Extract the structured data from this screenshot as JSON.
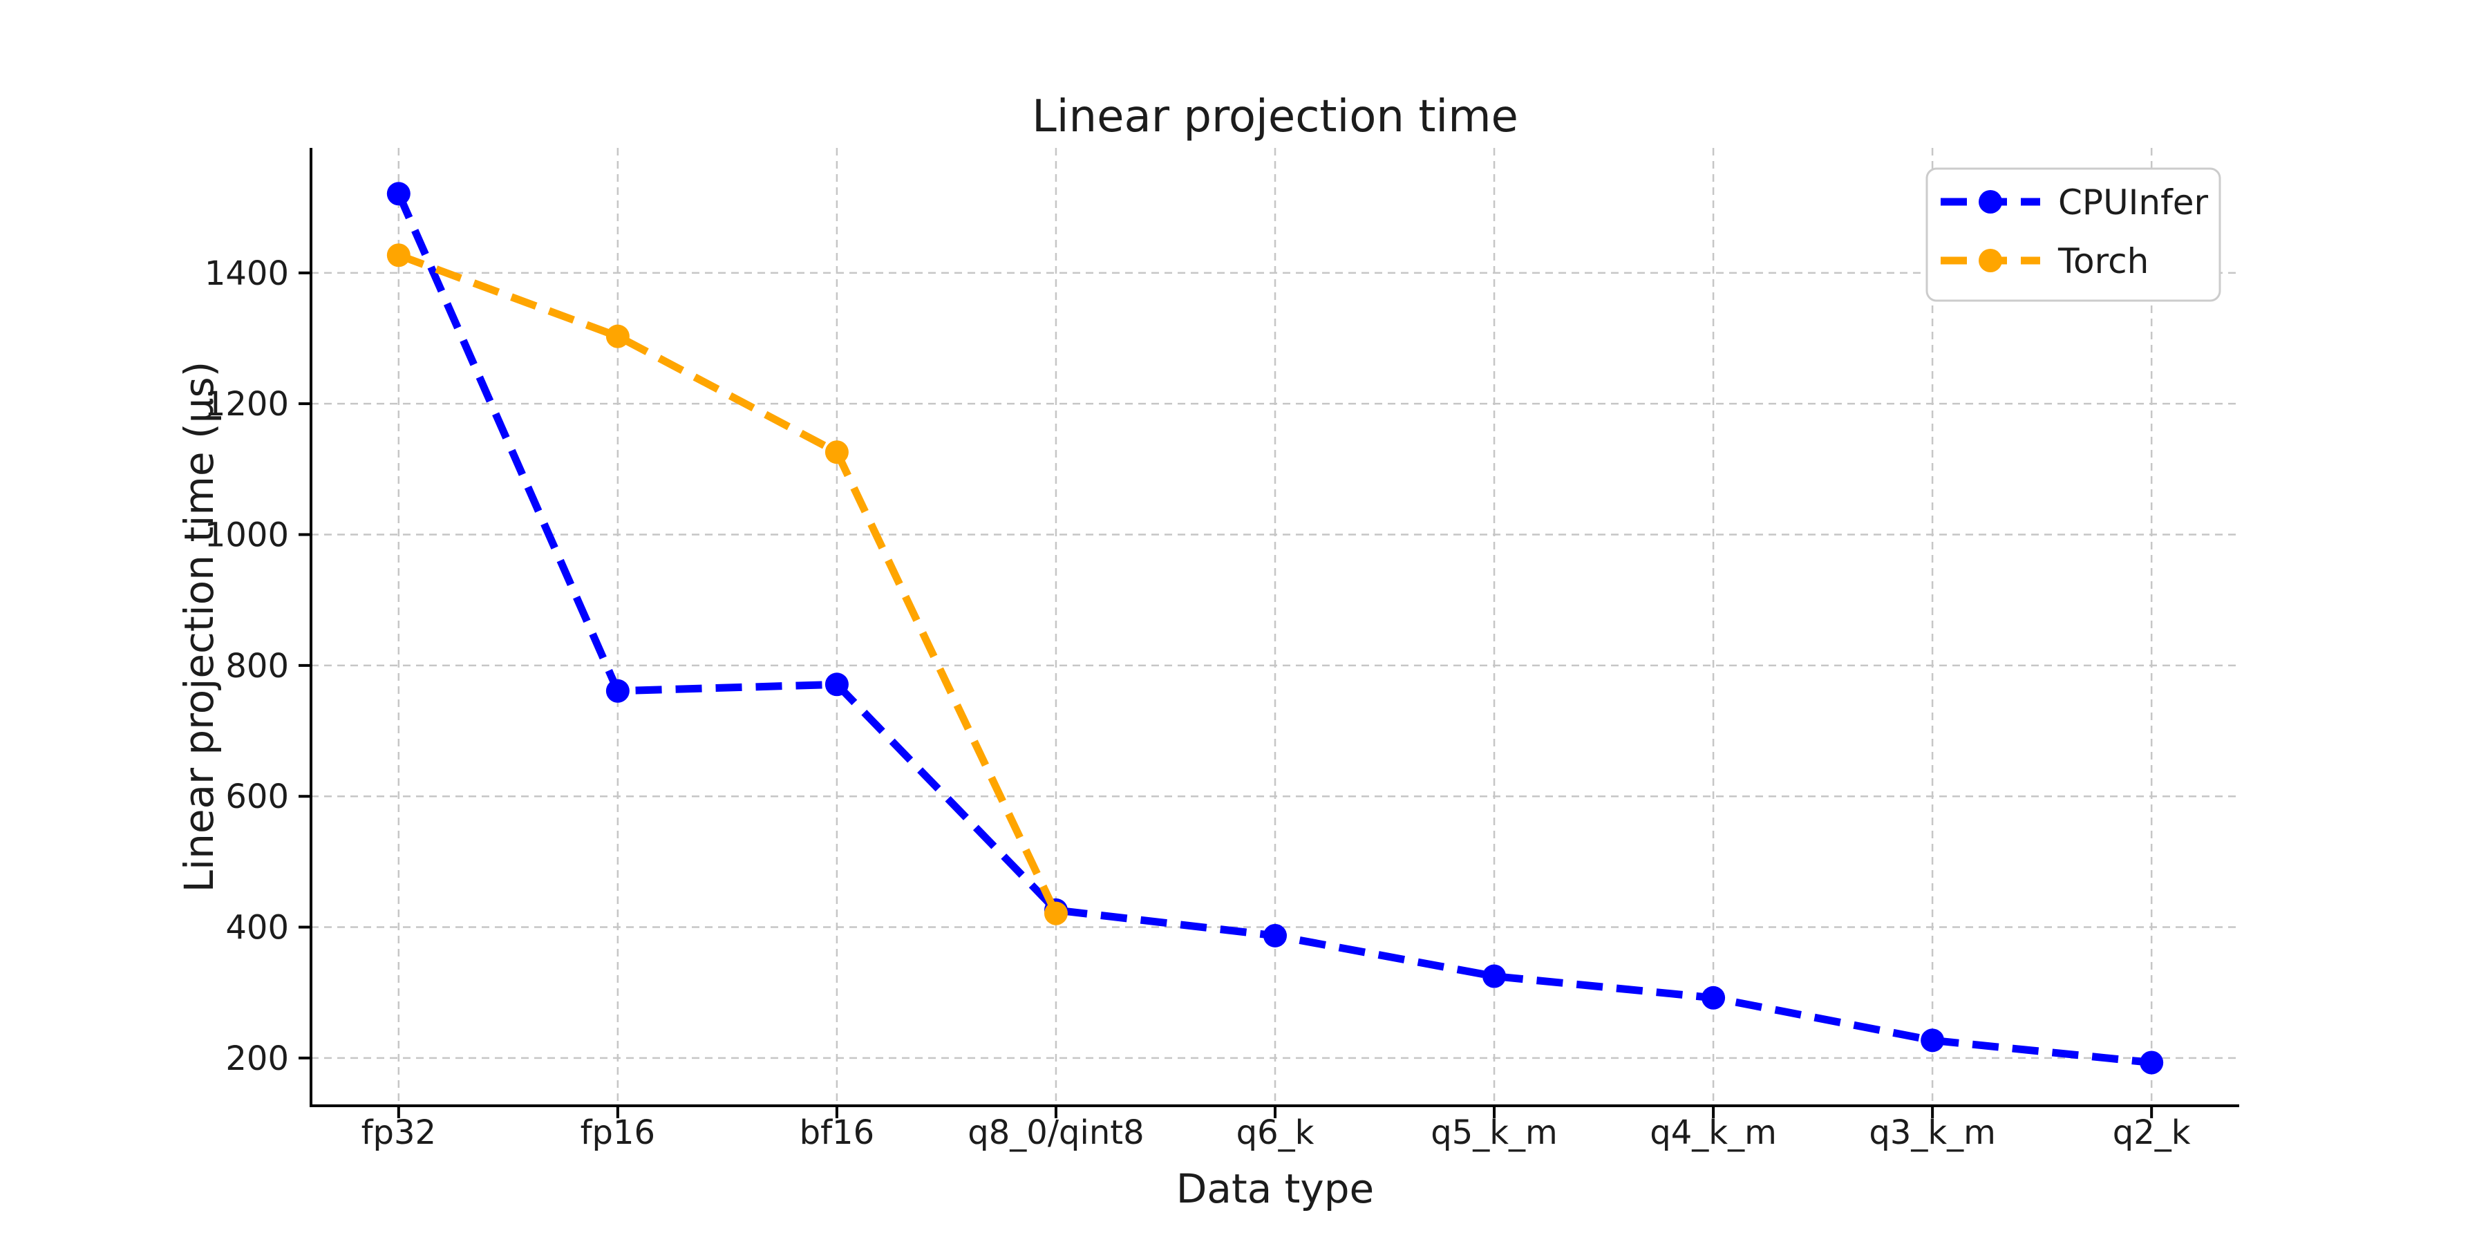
{
  "chart_data": {
    "type": "line",
    "title": "Linear projection time",
    "xlabel": "Data type",
    "ylabel": "Linear projection time (µs)",
    "categories": [
      "fp32",
      "fp16",
      "bf16",
      "q8_0/qint8",
      "q6_k",
      "q5_k_m",
      "q4_k_m",
      "q3_k_m",
      "q2_k"
    ],
    "series": [
      {
        "name": "CPUInfer",
        "color": "#0000ff",
        "linestyle": "dashed",
        "marker": "circle",
        "values": [
          1521,
          761,
          771,
          426,
          387,
          325,
          292,
          227,
          193
        ]
      },
      {
        "name": "Torch",
        "color": "#ffa500",
        "linestyle": "dashed",
        "marker": "circle",
        "values": [
          1427,
          1303,
          1126,
          421
        ]
      }
    ],
    "yticks": [
      200,
      400,
      600,
      800,
      1000,
      1200,
      1400
    ],
    "ylim": [
      127,
      1591
    ],
    "grid": true,
    "legend_position": "upper right"
  },
  "colors": {
    "grid": "#c6c6c6",
    "axis": "#000000",
    "text": "#1c1c1c",
    "legend_border": "#cccccc",
    "background": "#ffffff"
  }
}
